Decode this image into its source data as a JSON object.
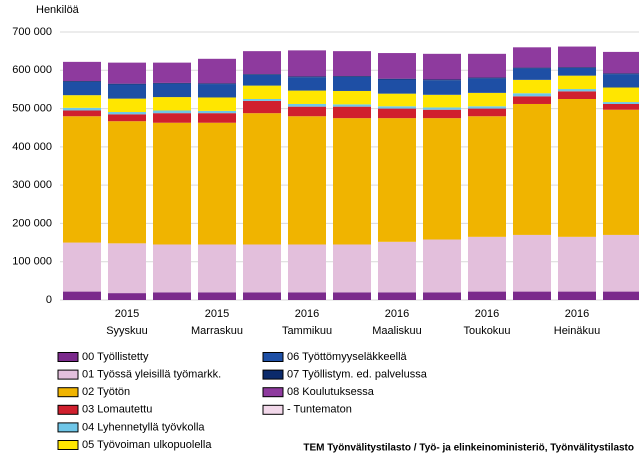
{
  "chart_data": {
    "type": "stacked_bar",
    "y_label": "Henkilöä",
    "source": "TEM Työnvälitystilasto / Työ- ja elinkeinoministeriö, Työnvälitystilasto",
    "category_years": [
      null,
      "2015",
      null,
      "2015",
      null,
      "2016",
      null,
      "2016",
      null,
      "2016",
      null,
      "2016",
      null
    ],
    "categories": [
      null,
      "Syyskuu",
      null,
      "Marraskuu",
      null,
      "Tammikuu",
      null,
      "Maaliskuu",
      null,
      "Toukokuu",
      null,
      "Heinäkuu",
      null
    ],
    "series": [
      {
        "name": "00 Työllistetty",
        "color": "#7b2a8c",
        "values": [
          22000,
          18000,
          20000,
          20000,
          20000,
          20000,
          20000,
          20000,
          20000,
          22000,
          22000,
          22000,
          22000
        ]
      },
      {
        "name": "01 Työssä yleisillä työmarkk.",
        "color": "#e3bfdc",
        "values": [
          128000,
          130000,
          125000,
          125000,
          125000,
          125000,
          125000,
          132000,
          138000,
          143000,
          148000,
          143000,
          148000
        ]
      },
      {
        "name": "02 Työtön",
        "color": "#f0b400",
        "values": [
          330000,
          319000,
          318000,
          318000,
          343000,
          335000,
          330000,
          323000,
          317000,
          315000,
          342000,
          360000,
          327000
        ]
      },
      {
        "name": "03 Lomautettu",
        "color": "#d0202e",
        "values": [
          15000,
          18000,
          25000,
          25000,
          32000,
          25000,
          30000,
          25000,
          22000,
          20000,
          20000,
          20000,
          15000
        ]
      },
      {
        "name": "04 Lyhennetyllä työvkolla",
        "color": "#6fc6e8",
        "values": [
          7000,
          6000,
          7000,
          6000,
          5000,
          7000,
          6000,
          6000,
          6000,
          6000,
          8000,
          6000,
          5000
        ]
      },
      {
        "name": "05 Työvoiman ulkopuolella",
        "color": "#ffe600",
        "values": [
          33000,
          35000,
          35000,
          35000,
          35000,
          35000,
          35000,
          33000,
          33000,
          35000,
          35000,
          35000,
          38000
        ]
      },
      {
        "name": "06 Työttömyyseläkkeellä",
        "color": "#1e4fa5",
        "values": [
          35000,
          37000,
          35000,
          35000,
          28000,
          35000,
          37000,
          37000,
          38000,
          38000,
          30000,
          20000,
          35000
        ]
      },
      {
        "name": "07 Työllistym. ed. palvelussa",
        "color": "#0b2a6b",
        "values": [
          2000,
          2000,
          2000,
          2000,
          2000,
          2000,
          2000,
          2000,
          2000,
          2000,
          2000,
          2000,
          2000
        ]
      },
      {
        "name": "08 Koulutuksessa",
        "color": "#8e3a9e",
        "values": [
          50000,
          55000,
          53000,
          64000,
          60000,
          68000,
          65000,
          67000,
          67000,
          62000,
          53000,
          54000,
          56000
        ]
      },
      {
        "name": "- Tuntematon",
        "color": "#f2d8ea",
        "values": [
          0,
          0,
          0,
          0,
          0,
          0,
          0,
          0,
          0,
          0,
          0,
          0,
          0
        ]
      }
    ],
    "ylim": [
      0,
      700000
    ],
    "yticks": [
      0,
      {
        "value": 100000,
        "label": "100 000"
      },
      {
        "value": 200000,
        "label": "200 000"
      },
      {
        "value": 300000,
        "label": "300 000"
      },
      {
        "value": 400000,
        "label": "400 000"
      },
      {
        "value": 500000,
        "label": "500 000"
      },
      {
        "value": 600000,
        "label": "600 000"
      },
      {
        "value": 700000,
        "label": "700 000"
      }
    ],
    "grid": true
  }
}
